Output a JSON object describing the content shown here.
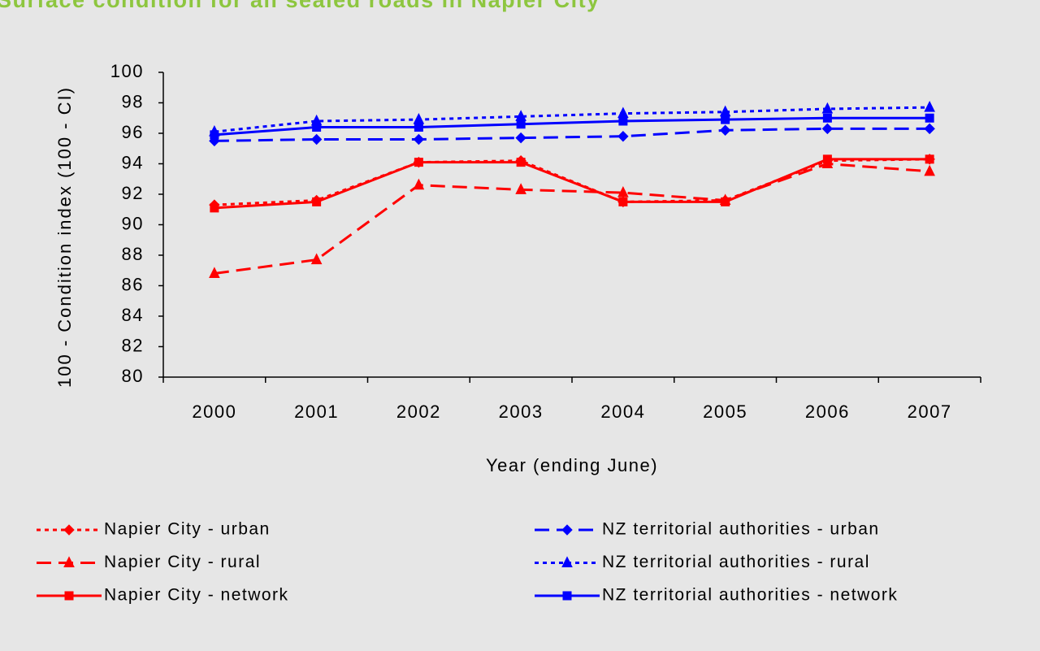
{
  "chart_data": {
    "type": "line",
    "title": "Surface condition for all sealed roads in Napier City",
    "x_label": "Year (ending June)",
    "y_label": "100 - Condition index (100 - CI)",
    "categories": [
      "2000",
      "2001",
      "2002",
      "2003",
      "2004",
      "2005",
      "2006",
      "2007"
    ],
    "ylim": [
      80,
      100
    ],
    "yticks": [
      80,
      82,
      84,
      86,
      88,
      90,
      92,
      94,
      96,
      98,
      100
    ],
    "series": [
      {
        "name": "Napier City - urban",
        "color": "#ff0000",
        "dash": "dotted",
        "marker": "diamond",
        "values": [
          91.3,
          91.6,
          94.1,
          94.2,
          91.5,
          91.6,
          94.2,
          94.3
        ]
      },
      {
        "name": "Napier City - rural",
        "color": "#ff0000",
        "dash": "dashed",
        "marker": "triangle",
        "values": [
          86.8,
          87.7,
          92.6,
          92.3,
          92.1,
          91.6,
          94.0,
          93.5
        ]
      },
      {
        "name": "Napier City - network",
        "color": "#ff0000",
        "dash": "solid",
        "marker": "square",
        "values": [
          91.1,
          91.5,
          94.1,
          94.1,
          91.5,
          91.5,
          94.3,
          94.3
        ]
      },
      {
        "name": "NZ territorial authorities - urban",
        "color": "#0000ff",
        "dash": "dashed",
        "marker": "diamond",
        "values": [
          95.5,
          95.6,
          95.6,
          95.7,
          95.8,
          96.2,
          96.3,
          96.3
        ]
      },
      {
        "name": "NZ territorial authorities - rural",
        "color": "#0000ff",
        "dash": "dotted",
        "marker": "triangle",
        "values": [
          96.1,
          96.8,
          96.9,
          97.1,
          97.3,
          97.4,
          97.6,
          97.7
        ]
      },
      {
        "name": "NZ territorial authorities - network",
        "color": "#0000ff",
        "dash": "solid",
        "marker": "square",
        "values": [
          95.9,
          96.4,
          96.4,
          96.6,
          96.8,
          96.9,
          97.0,
          97.0
        ]
      }
    ]
  }
}
